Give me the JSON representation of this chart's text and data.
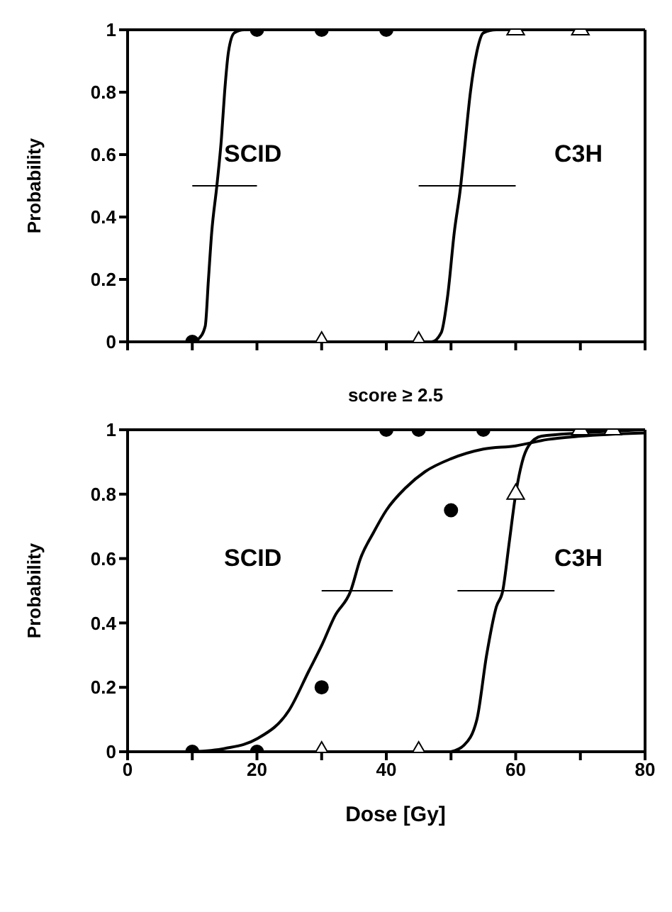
{
  "chart_data": [
    {
      "type": "scatter",
      "ylabel": "Probability",
      "xlim": [
        0,
        80
      ],
      "ylim": [
        0,
        1
      ],
      "tick_labels": "y",
      "grid": false,
      "xticks": [
        {
          "value": 0,
          "label": null
        },
        {
          "value": 10,
          "label": null
        },
        {
          "value": 20,
          "label": null
        },
        {
          "value": 30,
          "label": null
        },
        {
          "value": 40,
          "label": null
        },
        {
          "value": 50,
          "label": null
        },
        {
          "value": 60,
          "label": null
        },
        {
          "value": 70,
          "label": null
        },
        {
          "value": 80,
          "label": null
        }
      ],
      "yticks": [
        0,
        0.2,
        0.4,
        0.6,
        0.8,
        1
      ],
      "annotations": [
        "SCID",
        "C3H"
      ],
      "series": [
        {
          "type": "line",
          "marker": "none",
          "color": "#000000",
          "x": [
            10,
            11,
            12,
            12.5,
            13,
            13.8,
            14.5,
            15,
            15.6,
            16.5,
            18,
            20
          ],
          "values": [
            0,
            0.01,
            0.05,
            0.2,
            0.35,
            0.5,
            0.65,
            0.8,
            0.93,
            0.99,
            1,
            1
          ]
        },
        {
          "type": "line",
          "marker": "none",
          "color": "#000000",
          "x": [
            45,
            47,
            48.5,
            49.5,
            50.5,
            51.5,
            52,
            53,
            54,
            55,
            57,
            60
          ],
          "values": [
            0,
            0,
            0.03,
            0.15,
            0.35,
            0.5,
            0.6,
            0.8,
            0.93,
            0.99,
            1,
            1
          ]
        },
        {
          "type": "line",
          "marker": "none",
          "color": "#000000",
          "x": [
            10,
            20
          ],
          "values": [
            0.5,
            0.5
          ]
        },
        {
          "type": "line",
          "marker": "none",
          "color": "#000000",
          "x": [
            45,
            60
          ],
          "values": [
            0.5,
            0.5
          ]
        },
        {
          "marker": "circle",
          "color": "#000000",
          "x": [
            10,
            20,
            30,
            40
          ],
          "values": [
            0,
            1,
            1,
            1
          ]
        },
        {
          "marker": "triangle",
          "color": "#ffffff",
          "x": [
            30,
            45,
            60,
            70
          ],
          "values": [
            0,
            0,
            1,
            1
          ]
        }
      ]
    },
    {
      "type": "scatter",
      "title": "score ≥ 2.5",
      "ylabel": "Probability",
      "xlabel": "Dose [Gy]",
      "xlim": [
        0,
        80
      ],
      "ylim": [
        0,
        1
      ],
      "grid": false,
      "xticks": [
        0,
        {
          "value": 10,
          "label": null
        },
        20,
        {
          "value": 30,
          "label": null
        },
        40,
        {
          "value": 50,
          "label": null
        },
        60,
        {
          "value": 70,
          "label": null
        },
        80
      ],
      "yticks": [
        0,
        0.2,
        0.4,
        0.6,
        0.8,
        1
      ],
      "annotations": [
        "SCID",
        "C3H"
      ],
      "series": [
        {
          "type": "line",
          "marker": "none",
          "color": "#000000",
          "x": [
            10,
            15,
            20,
            25,
            28,
            30,
            32,
            34.5,
            36,
            38,
            40,
            43,
            46,
            50,
            55,
            60,
            65,
            70,
            80
          ],
          "values": [
            0,
            0.01,
            0.04,
            0.13,
            0.25,
            0.33,
            0.42,
            0.5,
            0.6,
            0.68,
            0.75,
            0.82,
            0.87,
            0.91,
            0.94,
            0.95,
            0.97,
            0.98,
            0.99
          ]
        },
        {
          "type": "line",
          "marker": "none",
          "color": "#000000",
          "x": [
            50,
            52,
            54,
            55.5,
            57,
            58,
            59,
            60,
            61,
            62,
            64,
            70,
            80
          ],
          "values": [
            0,
            0.02,
            0.1,
            0.3,
            0.45,
            0.5,
            0.65,
            0.8,
            0.9,
            0.95,
            0.98,
            0.99,
            1
          ]
        },
        {
          "type": "line",
          "marker": "none",
          "color": "#000000",
          "x": [
            30,
            41
          ],
          "values": [
            0.5,
            0.5
          ]
        },
        {
          "type": "line",
          "marker": "none",
          "color": "#000000",
          "x": [
            51,
            66
          ],
          "values": [
            0.5,
            0.5
          ]
        },
        {
          "marker": "circle",
          "color": "#000000",
          "x": [
            10,
            20,
            30,
            40,
            45,
            50,
            55
          ],
          "values": [
            0,
            0,
            0.2,
            1,
            1,
            0.75,
            1
          ]
        },
        {
          "marker": "triangle",
          "color": "#ffffff",
          "x": [
            30,
            45,
            60,
            70,
            75
          ],
          "values": [
            0,
            0,
            0.8,
            1,
            1
          ]
        }
      ]
    }
  ]
}
